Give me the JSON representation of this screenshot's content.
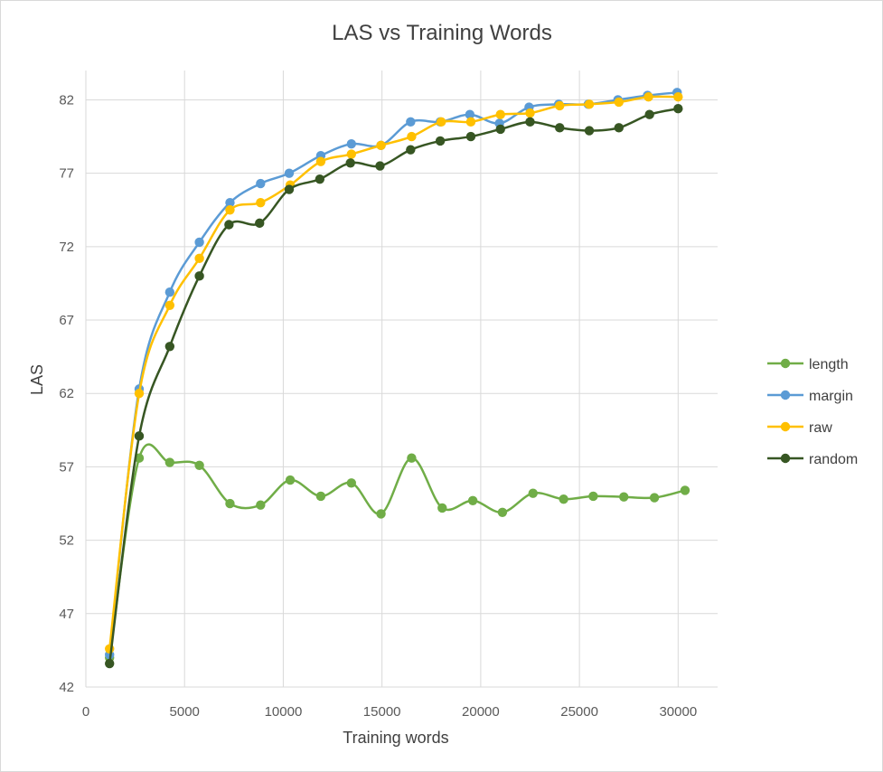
{
  "chart_data": {
    "type": "line",
    "title": "LAS vs Training Words",
    "xlabel": "Training words",
    "ylabel": "LAS",
    "xlim": [
      0,
      32000
    ],
    "ylim": [
      42,
      84
    ],
    "xticks": [
      0,
      5000,
      10000,
      15000,
      20000,
      25000,
      30000
    ],
    "yticks": [
      42,
      47,
      52,
      57,
      62,
      67,
      72,
      77,
      82
    ],
    "xtick_labels": [
      "0",
      "5000",
      "10000",
      "15000",
      "20000",
      "25000",
      "30000"
    ],
    "ytick_labels": [
      "42",
      "47",
      "52",
      "57",
      "62",
      "67",
      "72",
      "77",
      "82"
    ],
    "grid": true,
    "smooth": true,
    "legend_position": "right",
    "series": [
      {
        "name": "length",
        "color": "#70ad47",
        "points": [
          [
            1200,
            44.0
          ],
          [
            2700,
            57.6
          ],
          [
            4250,
            57.3
          ],
          [
            5750,
            57.1
          ],
          [
            7300,
            54.5
          ],
          [
            8850,
            54.4
          ],
          [
            10350,
            56.1
          ],
          [
            11900,
            55.0
          ],
          [
            13450,
            55.9
          ],
          [
            14950,
            53.8
          ],
          [
            16500,
            57.6
          ],
          [
            18050,
            54.2
          ],
          [
            19600,
            54.7
          ],
          [
            21100,
            53.9
          ],
          [
            22650,
            55.2
          ],
          [
            24200,
            54.8
          ],
          [
            25700,
            55.0
          ],
          [
            27250,
            54.95
          ],
          [
            28800,
            54.9
          ],
          [
            30350,
            55.4
          ]
        ]
      },
      {
        "name": "margin",
        "color": "#5b9bd5",
        "points": [
          [
            1200,
            44.2
          ],
          [
            2700,
            62.3
          ],
          [
            4250,
            68.9
          ],
          [
            5750,
            72.3
          ],
          [
            7300,
            75.0
          ],
          [
            8850,
            76.3
          ],
          [
            10300,
            77.0
          ],
          [
            11900,
            78.2
          ],
          [
            13450,
            79.0
          ],
          [
            14950,
            78.9
          ],
          [
            16450,
            80.5
          ],
          [
            17950,
            80.5
          ],
          [
            19450,
            81.0
          ],
          [
            20950,
            80.4
          ],
          [
            22450,
            81.5
          ],
          [
            23950,
            81.7
          ],
          [
            25450,
            81.7
          ],
          [
            26950,
            82.0
          ],
          [
            28450,
            82.3
          ],
          [
            29950,
            82.5
          ]
        ]
      },
      {
        "name": "raw",
        "color": "#ffc000",
        "points": [
          [
            1200,
            44.6
          ],
          [
            2700,
            62.0
          ],
          [
            4250,
            68.0
          ],
          [
            5750,
            71.2
          ],
          [
            7300,
            74.5
          ],
          [
            8850,
            75.0
          ],
          [
            10350,
            76.2
          ],
          [
            11900,
            77.8
          ],
          [
            13450,
            78.3
          ],
          [
            14950,
            78.9
          ],
          [
            16500,
            79.5
          ],
          [
            18000,
            80.5
          ],
          [
            19500,
            80.5
          ],
          [
            21000,
            81.0
          ],
          [
            22500,
            81.1
          ],
          [
            24000,
            81.6
          ],
          [
            25500,
            81.7
          ],
          [
            27000,
            81.85
          ],
          [
            28500,
            82.2
          ],
          [
            30000,
            82.2
          ]
        ]
      },
      {
        "name": "random",
        "color": "#375623",
        "points": [
          [
            1200,
            43.6
          ],
          [
            2700,
            59.1
          ],
          [
            4250,
            65.2
          ],
          [
            5750,
            70.0
          ],
          [
            7250,
            73.5
          ],
          [
            8800,
            73.6
          ],
          [
            10300,
            75.9
          ],
          [
            11850,
            76.6
          ],
          [
            13400,
            77.7
          ],
          [
            14900,
            77.5
          ],
          [
            16450,
            78.6
          ],
          [
            17950,
            79.2
          ],
          [
            19500,
            79.5
          ],
          [
            21000,
            80.0
          ],
          [
            22500,
            80.5
          ],
          [
            24000,
            80.1
          ],
          [
            25500,
            79.9
          ],
          [
            27000,
            80.1
          ],
          [
            28550,
            81.0
          ],
          [
            30000,
            81.4
          ]
        ]
      }
    ]
  }
}
